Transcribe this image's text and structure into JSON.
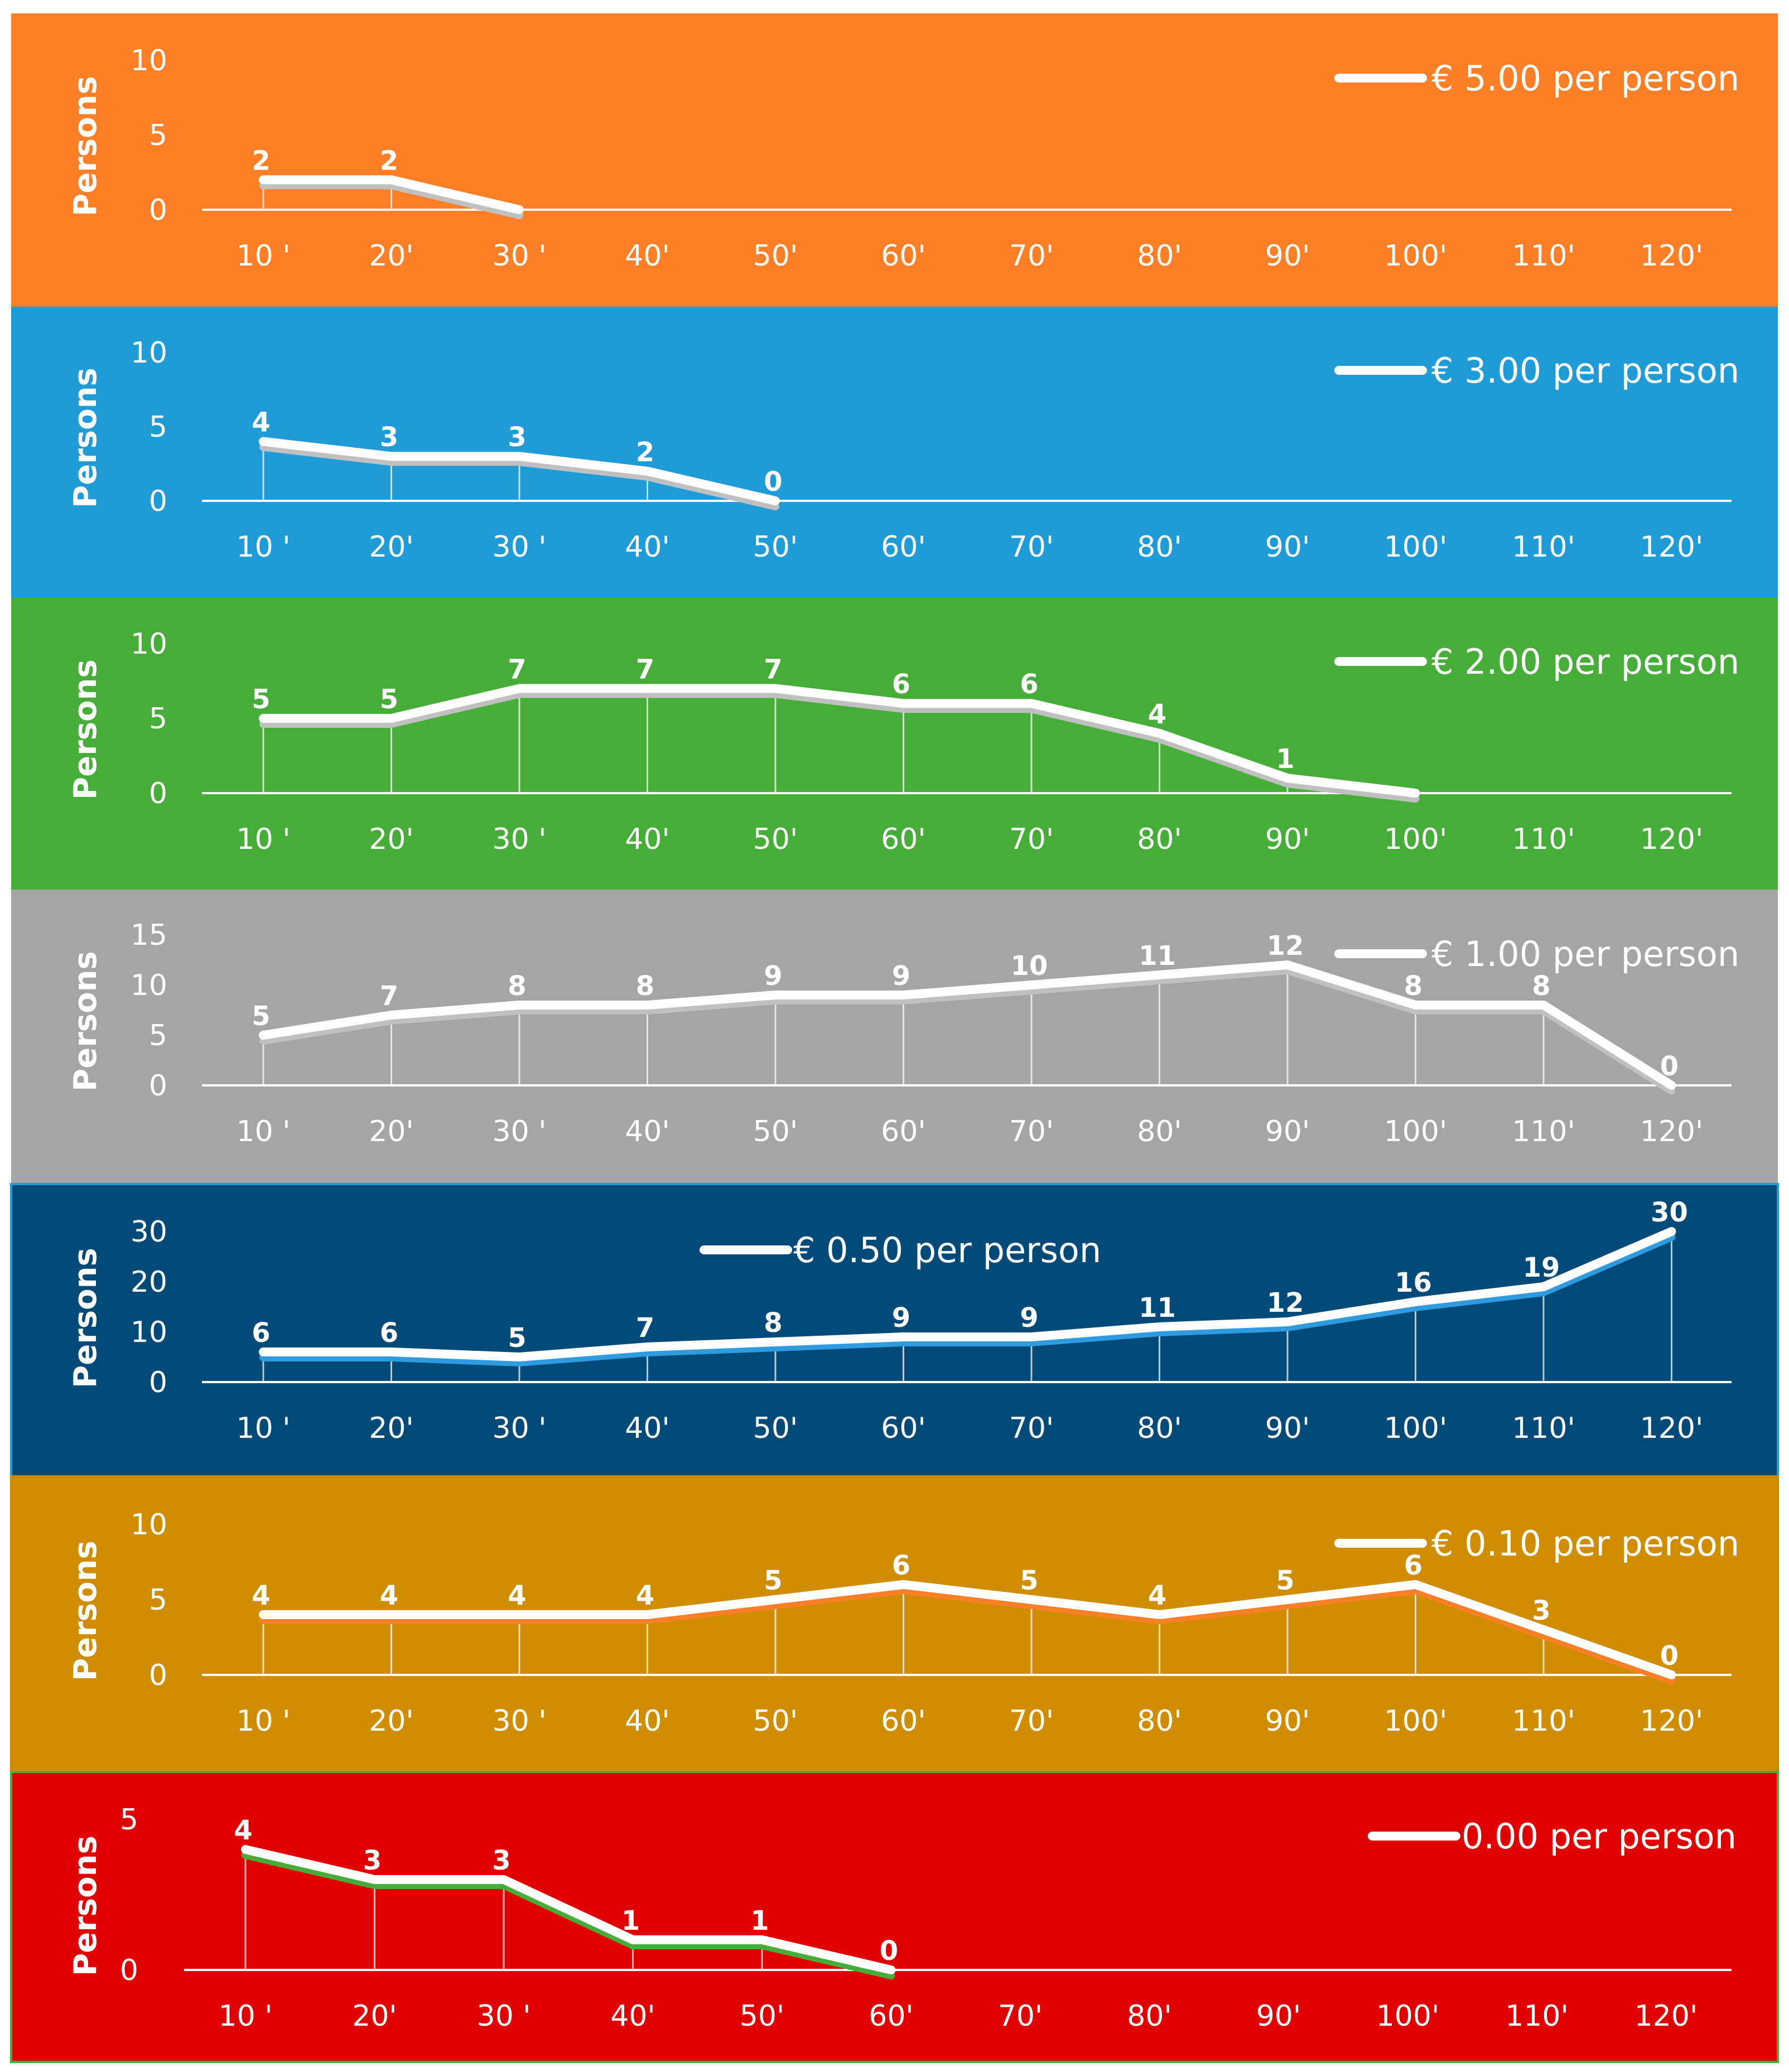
{
  "chart_data": [
    {
      "type": "line",
      "legend": "€ 5.00 per person",
      "ylabel": "Persons",
      "background": "#FF7F27",
      "shadow_color": "#c0c0c0",
      "ylim": [
        0,
        10
      ],
      "yticks": [
        "0",
        "5",
        "10"
      ],
      "categories": [
        "10 '",
        "20'",
        "30 '",
        "40'",
        "50'",
        "60'",
        "70'",
        "80'",
        "90'",
        "100'",
        "110'",
        "120'"
      ],
      "values": [
        2,
        2,
        0
      ],
      "labels": [
        "2",
        "2",
        ""
      ]
    },
    {
      "type": "line",
      "legend": "€ 3.00 per person",
      "ylabel": "Persons",
      "background": "#1F9BD7",
      "shadow_color": "#c0c0c0",
      "ylim": [
        0,
        10
      ],
      "yticks": [
        "0",
        "5",
        "10"
      ],
      "categories": [
        "10 '",
        "20'",
        "30 '",
        "40'",
        "50'",
        "60'",
        "70'",
        "80'",
        "90'",
        "100'",
        "110'",
        "120'"
      ],
      "values": [
        4,
        3,
        3,
        2,
        0
      ],
      "labels": [
        "4",
        "3",
        "3",
        "2",
        "0"
      ]
    },
    {
      "type": "line",
      "legend": "€ 2.00 per person",
      "ylabel": "Persons",
      "background": "#46AE38",
      "shadow_color": "#c0c0c0",
      "ylim": [
        0,
        10
      ],
      "yticks": [
        "0",
        "5",
        "10"
      ],
      "categories": [
        "10 '",
        "20'",
        "30 '",
        "40'",
        "50'",
        "60'",
        "70'",
        "80'",
        "90'",
        "100'",
        "110'",
        "120'"
      ],
      "values": [
        5,
        5,
        7,
        7,
        7,
        6,
        6,
        4,
        1,
        0
      ],
      "labels": [
        "5",
        "5",
        "7",
        "7",
        "7",
        "6",
        "6",
        "4",
        "1",
        ""
      ]
    },
    {
      "type": "line",
      "legend": "€ 1.00 per person",
      "ylabel": "Persons",
      "background": "#A5A5A5",
      "shadow_color": "#c0c0c0",
      "ylim": [
        0,
        15
      ],
      "yticks": [
        "0",
        "5",
        "10",
        "15"
      ],
      "categories": [
        "10 '",
        "20'",
        "30 '",
        "40'",
        "50'",
        "60'",
        "70'",
        "80'",
        "90'",
        "100'",
        "110'",
        "120'"
      ],
      "values": [
        5,
        7,
        8,
        8,
        9,
        9,
        10,
        11,
        12,
        8,
        8,
        0
      ],
      "labels": [
        "5",
        "7",
        "8",
        "8",
        "9",
        "9",
        "10",
        "11",
        "12",
        "8",
        "8",
        "0"
      ]
    },
    {
      "type": "line",
      "legend": "€ 0.50 per person",
      "ylabel": "Persons",
      "background": "#004A7A",
      "shadow_color": "#2E9BE0",
      "ylim": [
        0,
        30
      ],
      "yticks": [
        "0",
        "10",
        "20",
        "30"
      ],
      "categories": [
        "10 '",
        "20'",
        "30 '",
        "40'",
        "50'",
        "60'",
        "70'",
        "80'",
        "90'",
        "100'",
        "110'",
        "120'"
      ],
      "values": [
        6,
        6,
        5,
        7,
        8,
        9,
        9,
        11,
        12,
        16,
        19,
        30
      ],
      "labels": [
        "6",
        "6",
        "5",
        "7",
        "8",
        "9",
        "9",
        "11",
        "12",
        "16",
        "19",
        "30"
      ]
    },
    {
      "type": "line",
      "legend": "€ 0.10 per person",
      "ylabel": "Persons",
      "background": "#D18D00",
      "shadow_color": "#FF7F27",
      "ylim": [
        0,
        10
      ],
      "yticks": [
        "0",
        "5",
        "10"
      ],
      "categories": [
        "10 '",
        "20'",
        "30 '",
        "40'",
        "50'",
        "60'",
        "70'",
        "80'",
        "90'",
        "100'",
        "110'",
        "120'"
      ],
      "values": [
        4,
        4,
        4,
        4,
        5,
        6,
        5,
        4,
        5,
        6,
        3,
        0
      ],
      "labels": [
        "4",
        "4",
        "4",
        "4",
        "5",
        "6",
        "5",
        "4",
        "5",
        "6",
        "3",
        "0"
      ]
    },
    {
      "type": "line",
      "legend": "0.00 per person",
      "ylabel": "Persons",
      "background": "#E00000",
      "shadow_color": "#46AE38",
      "ylim": [
        0,
        5
      ],
      "yticks": [
        "0",
        "5"
      ],
      "categories": [
        "10 '",
        "20'",
        "30 '",
        "40'",
        "50'",
        "60'",
        "70'",
        "80'",
        "90'",
        "100'",
        "110'",
        "120'"
      ],
      "values": [
        4,
        3,
        3,
        1,
        1,
        0
      ],
      "labels": [
        "4",
        "3",
        "3",
        "1",
        "1",
        "0"
      ]
    }
  ]
}
